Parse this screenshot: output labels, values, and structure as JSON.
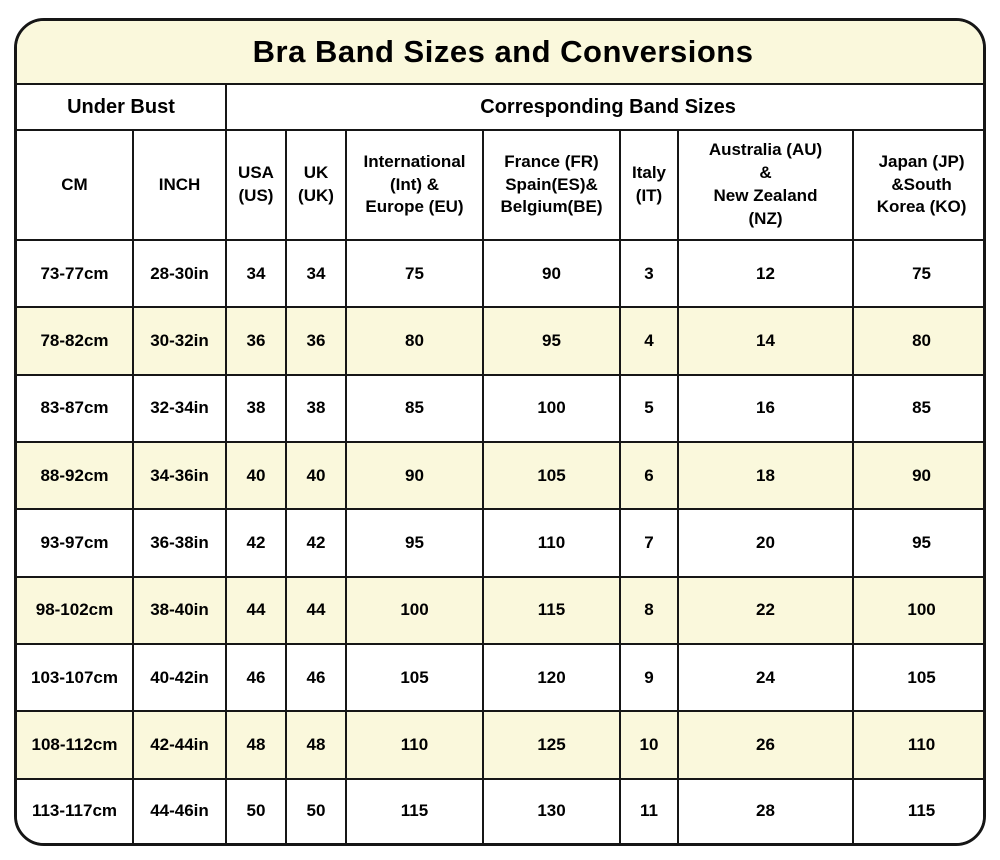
{
  "colors": {
    "stripe": "#faf8dc",
    "title_background": "#faf8dc",
    "border": "#161616",
    "row_background": "#ffffff",
    "text": "#000000"
  },
  "display": {
    "column_labels": [
      "CM",
      "INCH",
      "USA\n(US)",
      "UK\n(UK)",
      "International\n(Int) &\nEurope (EU)",
      "France (FR)\nSpain(ES)&\nBelgium(BE)",
      "Italy\n(IT)",
      "Australia (AU)\n&\nNew Zealand\n(NZ)",
      "Japan (JP)\n&South\nKorea (KO)"
    ]
  },
  "chart_data": {
    "type": "table",
    "title": "Bra Band Sizes and Conversions",
    "group_headers": [
      "Under Bust",
      "Corresponding Band Sizes"
    ],
    "columns": [
      "CM",
      "INCH",
      "USA (US)",
      "UK (UK)",
      "International (Int) & Europe (EU)",
      "France (FR) Spain(ES)& Belgium(BE)",
      "Italy (IT)",
      "Australia (AU) & New Zealand (NZ)",
      "Japan (JP) &South Korea (KO)"
    ],
    "rows": [
      [
        "73-77cm",
        "28-30in",
        "34",
        "34",
        "75",
        "90",
        "3",
        "12",
        "75"
      ],
      [
        "78-82cm",
        "30-32in",
        "36",
        "36",
        "80",
        "95",
        "4",
        "14",
        "80"
      ],
      [
        "83-87cm",
        "32-34in",
        "38",
        "38",
        "85",
        "100",
        "5",
        "16",
        "85"
      ],
      [
        "88-92cm",
        "34-36in",
        "40",
        "40",
        "90",
        "105",
        "6",
        "18",
        "90"
      ],
      [
        "93-97cm",
        "36-38in",
        "42",
        "42",
        "95",
        "110",
        "7",
        "20",
        "95"
      ],
      [
        "98-102cm",
        "38-40in",
        "44",
        "44",
        "100",
        "115",
        "8",
        "22",
        "100"
      ],
      [
        "103-107cm",
        "40-42in",
        "46",
        "46",
        "105",
        "120",
        "9",
        "24",
        "105"
      ],
      [
        "108-112cm",
        "42-44in",
        "48",
        "48",
        "110",
        "125",
        "10",
        "26",
        "110"
      ],
      [
        "113-117cm",
        "44-46in",
        "50",
        "50",
        "115",
        "130",
        "11",
        "28",
        "115"
      ]
    ]
  }
}
